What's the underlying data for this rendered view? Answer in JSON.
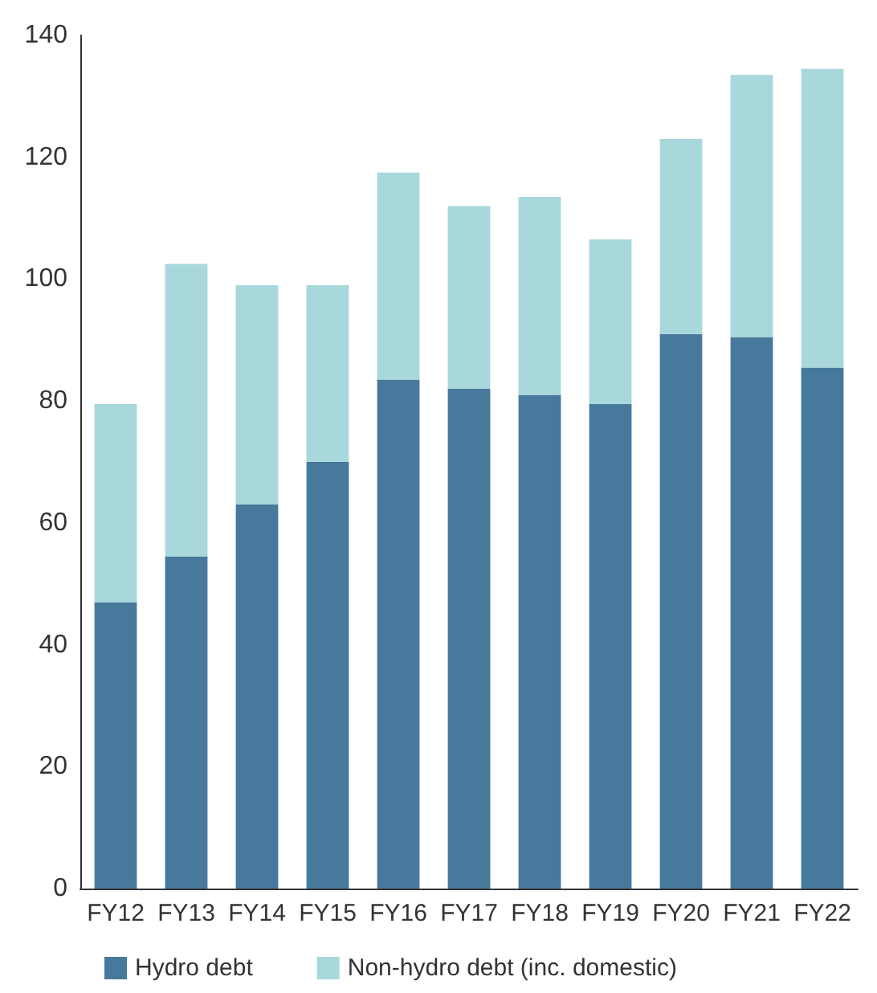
{
  "chart_data": {
    "type": "bar",
    "stacked": true,
    "categories": [
      "FY12",
      "FY13",
      "FY14",
      "FY15",
      "FY16",
      "FY17",
      "FY18",
      "FY19",
      "FY20",
      "FY21",
      "FY22"
    ],
    "series": [
      {
        "name": "Hydro debt",
        "color": "#47799c",
        "values": [
          47,
          54.5,
          63,
          70,
          83.5,
          82,
          81,
          79.5,
          91,
          90.5,
          85.5
        ]
      },
      {
        "name": "Non-hydro debt (inc. domestic)",
        "color": "#a8d8db",
        "values": [
          32.5,
          48,
          36,
          29,
          34,
          30,
          32.5,
          27,
          32,
          43,
          49
        ]
      }
    ],
    "ylim": [
      0,
      140
    ],
    "yticks": [
      0,
      20,
      40,
      60,
      80,
      100,
      120,
      140
    ],
    "grid": false,
    "legend": "bottom"
  }
}
